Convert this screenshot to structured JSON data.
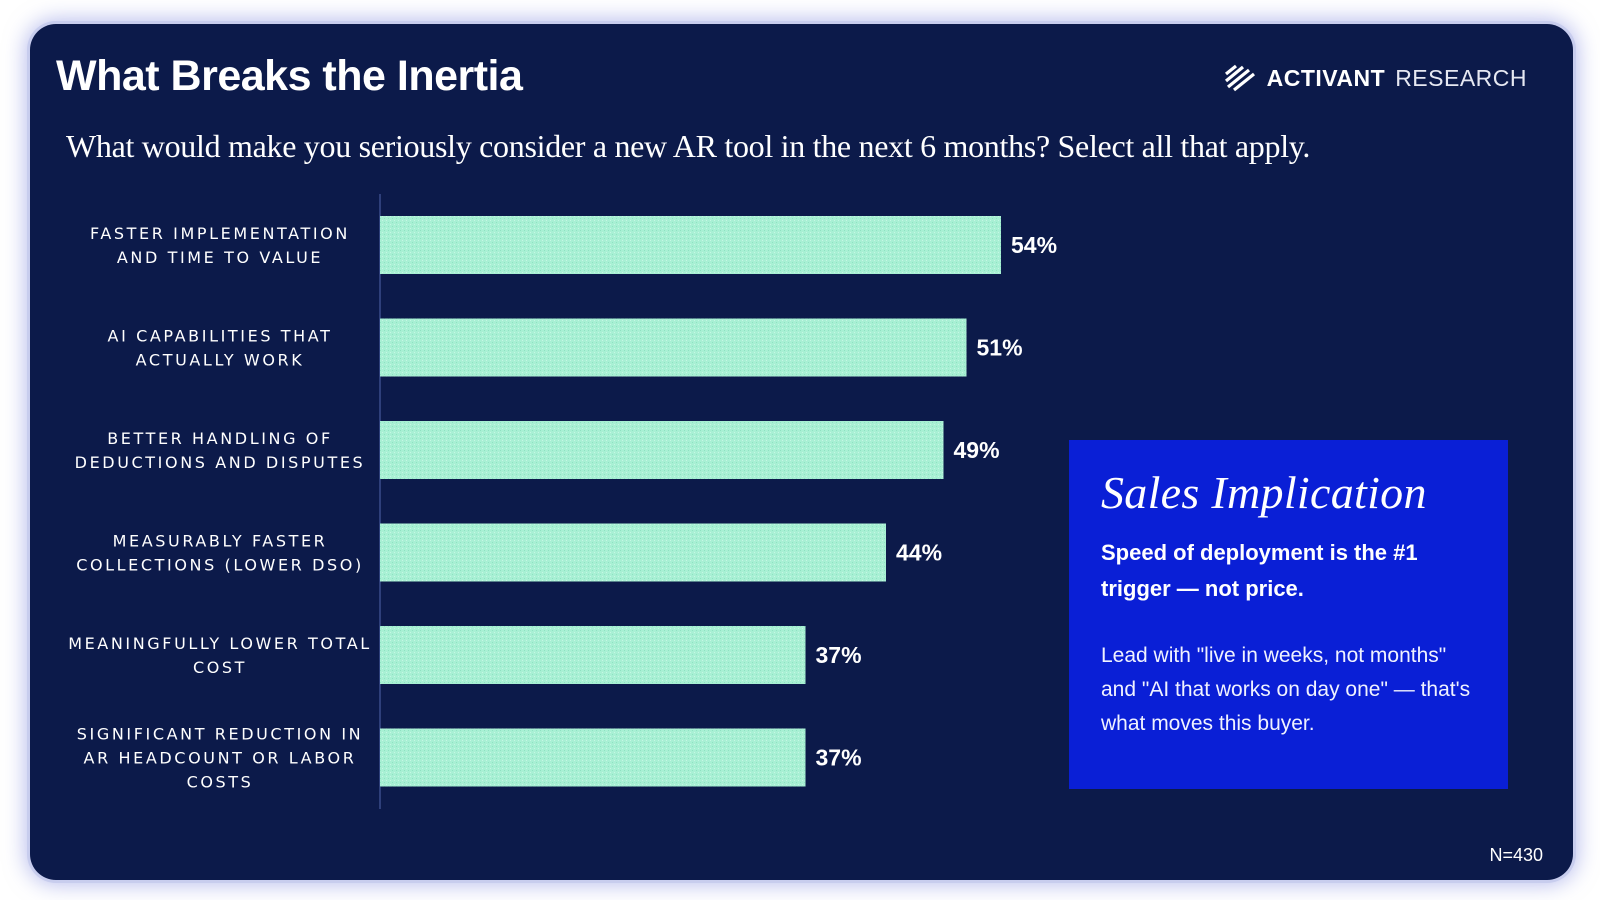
{
  "header": {
    "title": "What Breaks the Inertia",
    "brand_strong": "ACTIVANT",
    "brand_light": "RESEARCH",
    "subtitle": "What would make you seriously consider a new AR tool in the next 6 months? Select all that apply."
  },
  "chart_data": {
    "type": "bar",
    "orientation": "horizontal",
    "categories": [
      [
        "FASTER IMPLEMENTATION",
        "AND TIME TO VALUE"
      ],
      [
        "AI CAPABILITIES THAT",
        "ACTUALLY WORK"
      ],
      [
        "BETTER HANDLING OF",
        "DEDUCTIONS AND DISPUTES"
      ],
      [
        "MEASURABLY FASTER",
        "COLLECTIONS (LOWER DSO)"
      ],
      [
        "MEANINGFULLY LOWER TOTAL",
        "COST"
      ],
      [
        "SIGNIFICANT REDUCTION IN",
        "AR HEADCOUNT OR LABOR",
        "COSTS"
      ]
    ],
    "values": [
      54,
      51,
      49,
      44,
      37,
      37
    ],
    "value_labels": [
      "54%",
      "51%",
      "49%",
      "44%",
      "37%",
      "37%"
    ],
    "xlim": [
      0,
      100
    ],
    "grid": false,
    "bar_color": "#a8f0d4"
  },
  "callout": {
    "title": "Sales Implication",
    "headline": "Speed of deployment is the #1 trigger — not price.",
    "body": "Lead with \"live in weeks, not months\" and \"AI that works on day one\" — that's what moves this buyer."
  },
  "footnote": "N=430",
  "colors": {
    "background": "#0c1a4a",
    "callout": "#0a1fd6",
    "bar": "#a8f0d4",
    "text": "#ffffff"
  },
  "icons": {
    "brand": "activant-stripes-logo-icon"
  }
}
